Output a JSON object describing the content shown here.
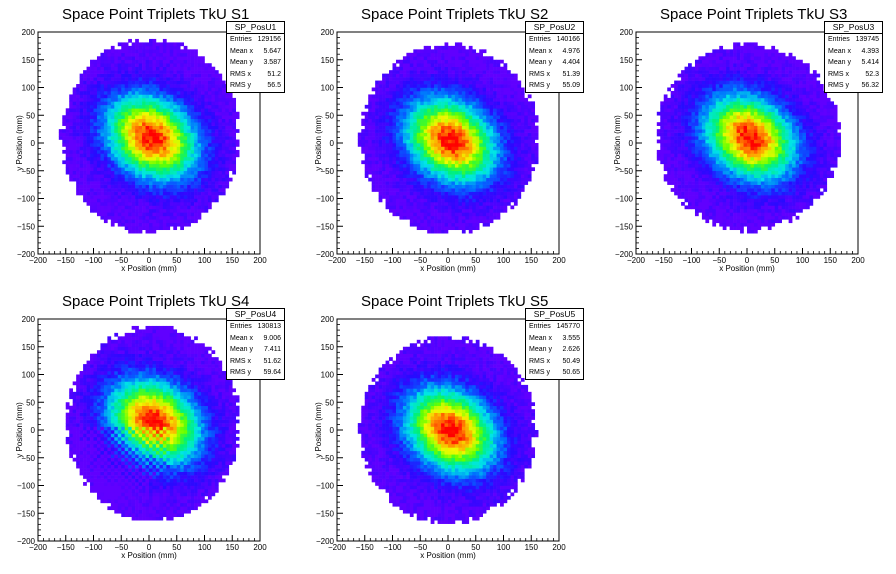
{
  "axes": {
    "xlabel": "x Position (mm)",
    "ylabel": "y Position (mm)",
    "xticks": [
      "−200",
      "−150",
      "−100",
      "−50",
      "0",
      "50",
      "100",
      "150",
      "200"
    ],
    "yticks": [
      "200",
      "150",
      "100",
      "50",
      "0",
      "−50",
      "−100",
      "−150",
      "−200"
    ]
  },
  "stat_labels": {
    "entries": "Entries",
    "meanx": "Mean x",
    "meany": "Mean y",
    "rmsx": "RMS x",
    "rmsy": "RMS y"
  },
  "panels": [
    {
      "title": "Space Point Triplets TkU S1",
      "stats": {
        "name": "SP_PosU1",
        "entries": "129156",
        "meanx": "5.647",
        "meany": "3.587",
        "rmsx": "51.2",
        "rmsy": "56.5"
      }
    },
    {
      "title": "Space Point Triplets TkU S2",
      "stats": {
        "name": "SP_PosU2",
        "entries": "140166",
        "meanx": "4.976",
        "meany": "4.404",
        "rmsx": "51.39",
        "rmsy": "55.09"
      }
    },
    {
      "title": "Space Point Triplets TkU S3",
      "stats": {
        "name": "SP_PosU3",
        "entries": "139745",
        "meanx": "4.393",
        "meany": "5.414",
        "rmsx": "52.3",
        "rmsy": "56.32"
      }
    },
    {
      "title": "Space Point Triplets TkU S4",
      "stats": {
        "name": "SP_PosU4",
        "entries": "130813",
        "meanx": "9.006",
        "meany": "7.411",
        "rmsx": "51.62",
        "rmsy": "59.64"
      }
    },
    {
      "title": "Space Point Triplets TkU S5",
      "stats": {
        "name": "SP_PosU5",
        "entries": "145770",
        "meanx": "3.555",
        "meany": "2.626",
        "rmsx": "50.49",
        "rmsy": "50.65"
      }
    }
  ],
  "chart_data": [
    {
      "type": "heatmap",
      "title": "Space Point Triplets TkU S1",
      "xlabel": "x Position (mm)",
      "ylabel": "y Position (mm)",
      "xlim": [
        -200,
        200
      ],
      "ylim": [
        -200,
        200
      ],
      "center": [
        5,
        10
      ],
      "extent_x": [
        -160,
        165
      ],
      "extent_y": [
        -165,
        190
      ]
    },
    {
      "type": "heatmap",
      "title": "Space Point Triplets TkU S2",
      "xlabel": "x Position (mm)",
      "ylabel": "y Position (mm)",
      "xlim": [
        -200,
        200
      ],
      "ylim": [
        -200,
        200
      ],
      "center": [
        5,
        5
      ],
      "extent_x": [
        -160,
        165
      ],
      "extent_y": [
        -165,
        180
      ]
    },
    {
      "type": "heatmap",
      "title": "Space Point Triplets TkU S3",
      "xlabel": "x Position (mm)",
      "ylabel": "y Position (mm)",
      "xlim": [
        -200,
        200
      ],
      "ylim": [
        -200,
        200
      ],
      "center": [
        5,
        10
      ],
      "extent_x": [
        -165,
        170
      ],
      "extent_y": [
        -160,
        180
      ]
    },
    {
      "type": "heatmap",
      "title": "Space Point Triplets TkU S4",
      "xlabel": "x Position (mm)",
      "ylabel": "y Position (mm)",
      "xlim": [
        -200,
        200
      ],
      "ylim": [
        -200,
        200
      ],
      "center": [
        10,
        15
      ],
      "extent_x": [
        -150,
        165
      ],
      "extent_y": [
        -165,
        190
      ]
    },
    {
      "type": "heatmap",
      "title": "Space Point Triplets TkU S5",
      "xlabel": "x Position (mm)",
      "ylabel": "y Position (mm)",
      "xlim": [
        -200,
        200
      ],
      "ylim": [
        -200,
        200
      ],
      "center": [
        5,
        0
      ],
      "extent_x": [
        -160,
        160
      ],
      "extent_y": [
        -170,
        170
      ]
    }
  ]
}
